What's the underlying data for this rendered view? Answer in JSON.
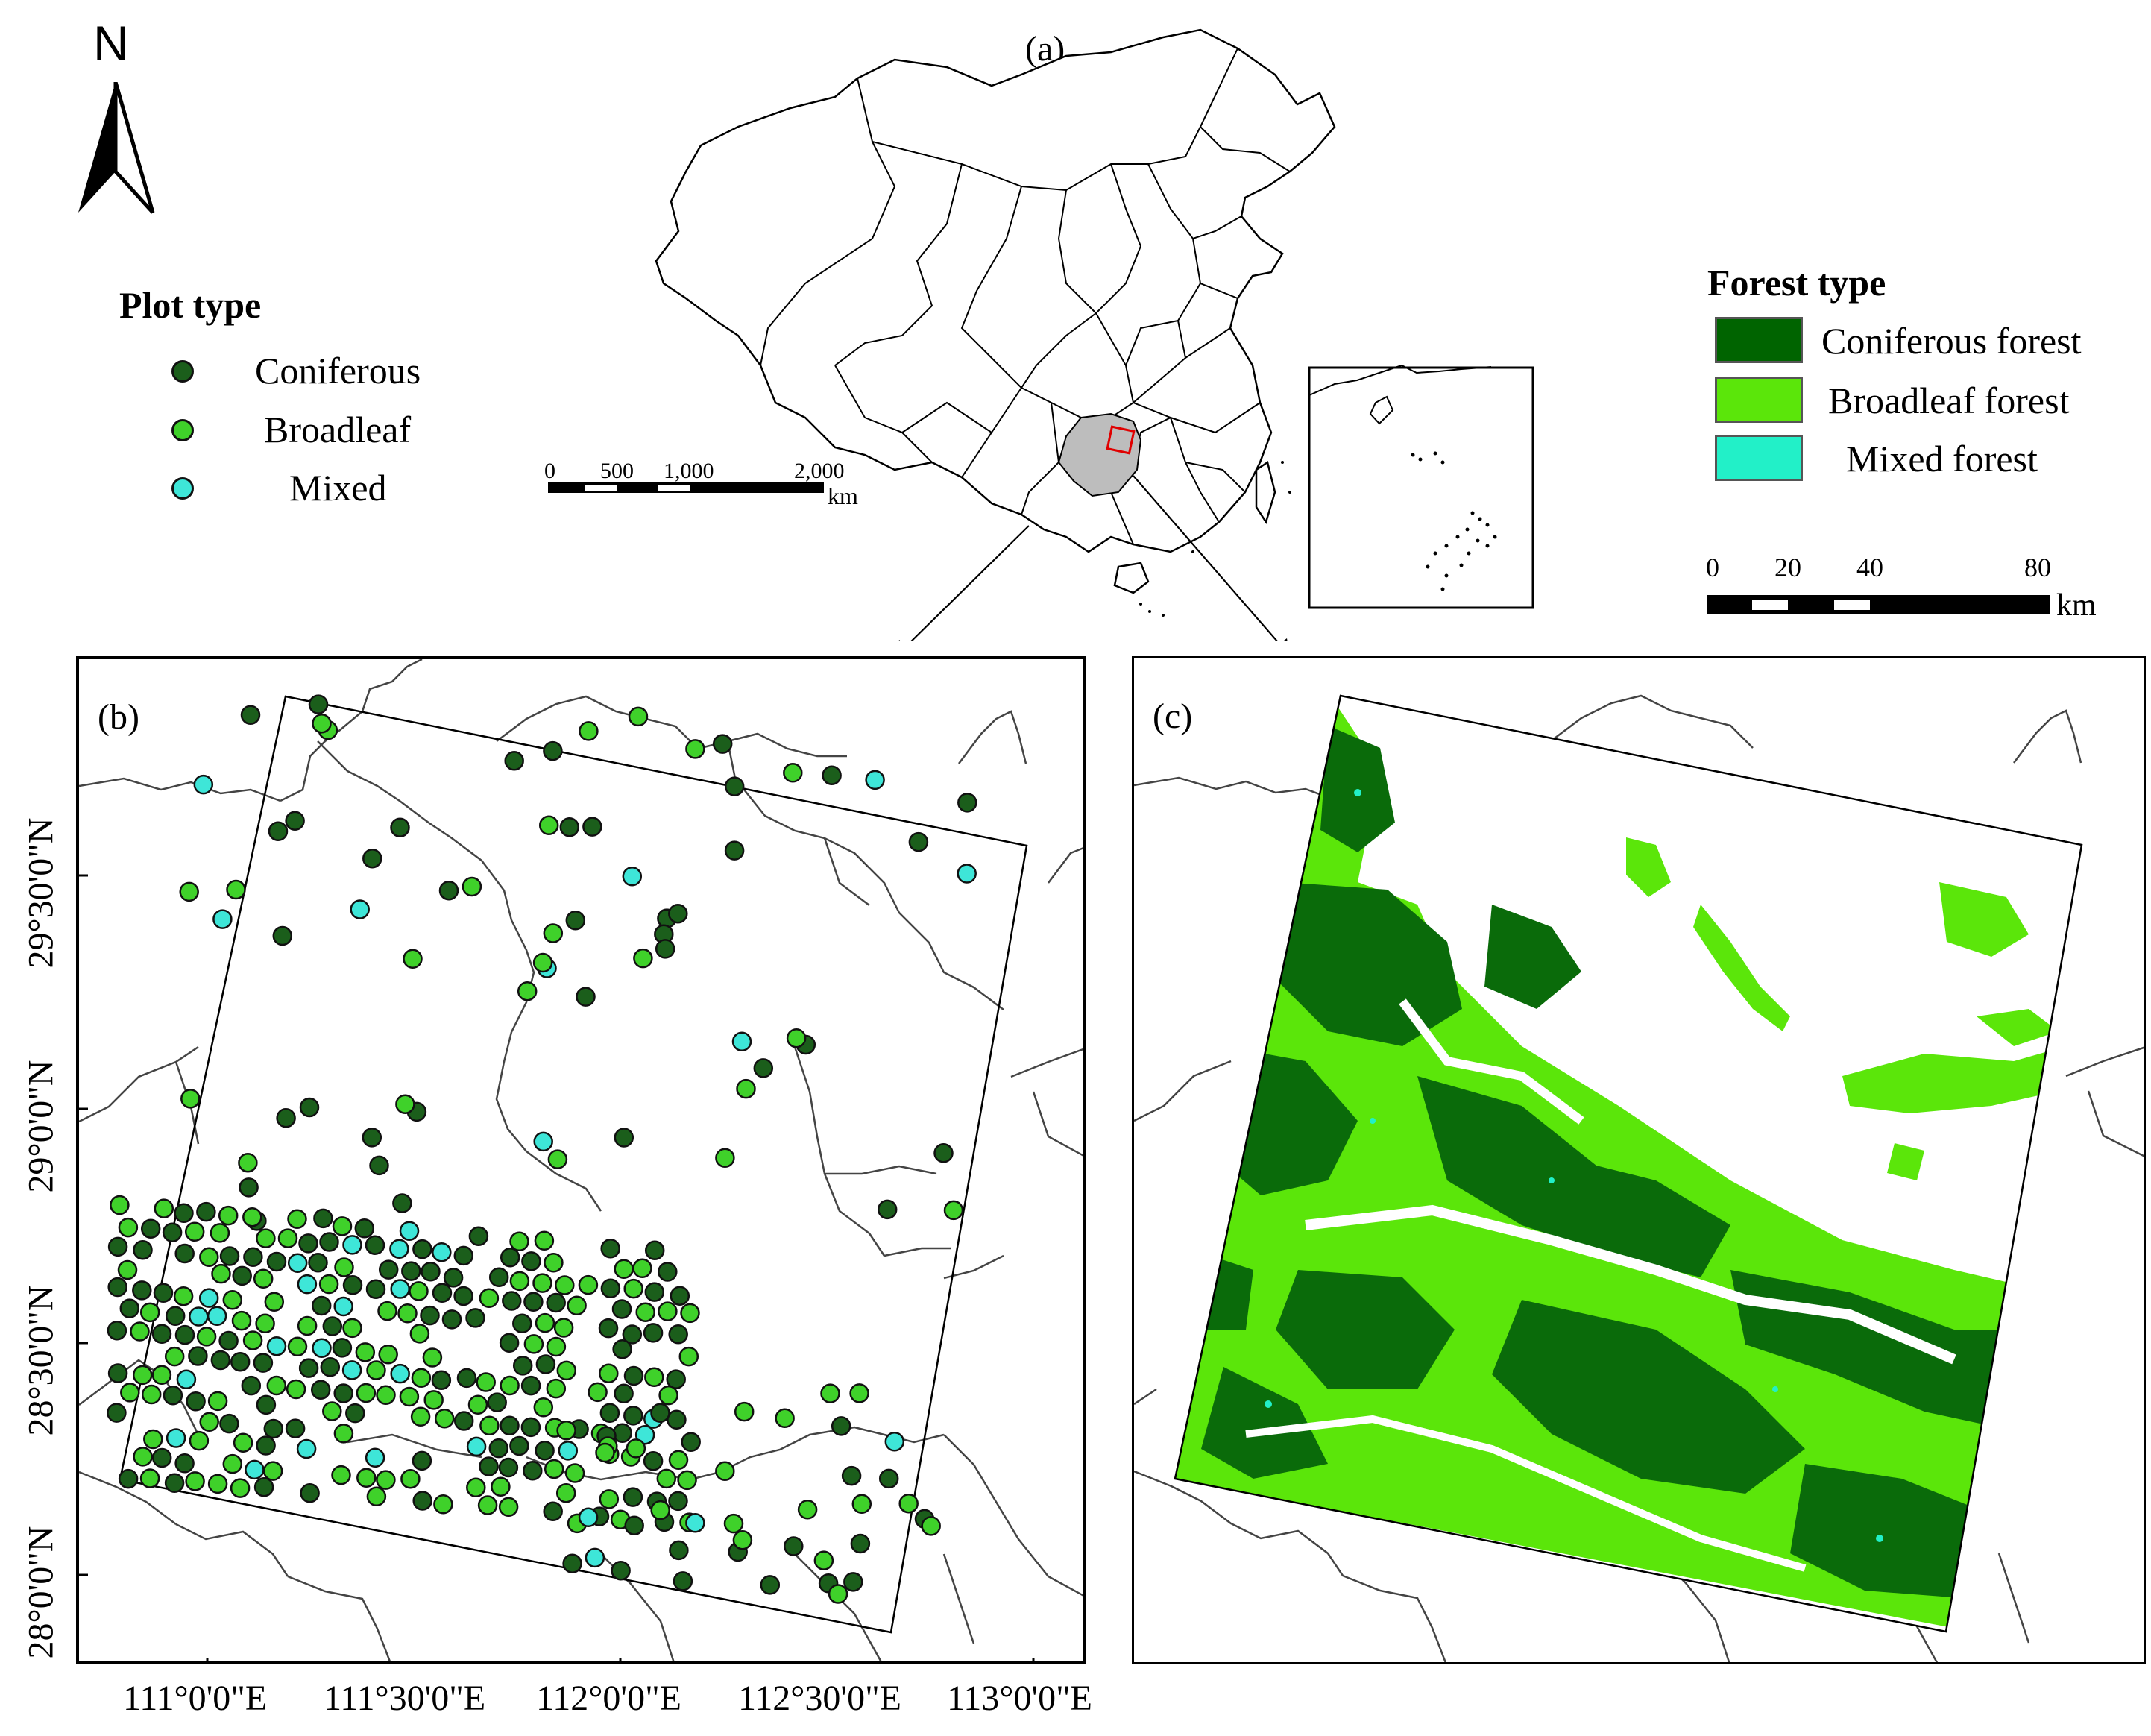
{
  "north_arrow": {
    "label": "N"
  },
  "panel_a": {
    "label": "(a)",
    "scale_bar": {
      "ticks": [
        "0",
        "500",
        "1,000",
        "2,000"
      ],
      "unit": "km"
    }
  },
  "panel_b": {
    "label": "(b)"
  },
  "panel_c": {
    "label": "(c)"
  },
  "plot_legend": {
    "title": "Plot type",
    "items": [
      {
        "label": "Coniferous",
        "color": "#1b5e1b"
      },
      {
        "label": "Broadleaf",
        "color": "#3fd12a"
      },
      {
        "label": "Mixed",
        "color": "#3ee6d8"
      }
    ]
  },
  "forest_legend": {
    "title": "Forest type",
    "items": [
      {
        "label": "Coniferous forest",
        "color": "#006400"
      },
      {
        "label": "Broadleaf forest",
        "color": "#5be60a"
      },
      {
        "label": "Mixed forest",
        "color": "#22f0c8"
      }
    ]
  },
  "forest_scale_bar": {
    "ticks": [
      "0",
      "20",
      "40",
      "80"
    ],
    "unit": "km"
  },
  "axes": {
    "lat_labels": [
      "29°30'0\"N",
      "29°0'0\"N",
      "28°30'0\"N",
      "28°0'0\"N"
    ],
    "lon_labels": [
      "111°0'0\"E",
      "111°30'0\"E",
      "112°0'0\"E",
      "112°30'0\"E",
      "113°0'0\"E"
    ]
  }
}
